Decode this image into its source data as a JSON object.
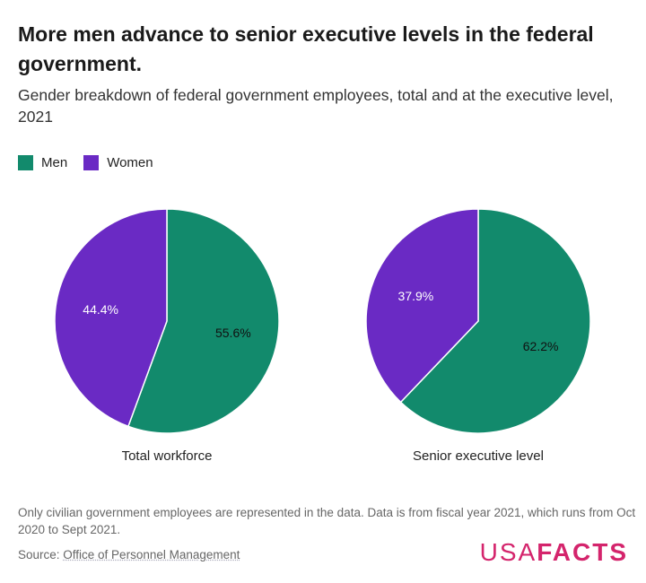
{
  "chart_data": {
    "type": "pie",
    "title": "More men advance to senior executive levels in the federal government.",
    "subtitle": "Gender breakdown of federal government employees, total and at the executive level, 2021",
    "legend": [
      {
        "name": "Men",
        "color": "#128a6c"
      },
      {
        "name": "Women",
        "color": "#6a2ac4"
      }
    ],
    "legend_position": "top-left",
    "pies": [
      {
        "label": "Total workforce",
        "slices": [
          {
            "name": "Men",
            "value": 55.6,
            "label": "55.6%"
          },
          {
            "name": "Women",
            "value": 44.4,
            "label": "44.4%"
          }
        ]
      },
      {
        "label": "Senior executive level",
        "slices": [
          {
            "name": "Men",
            "value": 62.2,
            "label": "62.2%"
          },
          {
            "name": "Women",
            "value": 37.9,
            "label": "37.9%"
          }
        ]
      }
    ]
  },
  "footer": {
    "note": "Only civilian government employees are represented in the data. Data is from fiscal year 2021, which runs from Oct 2020 to Sept 2021.",
    "source_prefix": "Source: ",
    "source_link": "Office of Personnel Management",
    "logo_light": "USA",
    "logo_bold": "FACTS"
  }
}
